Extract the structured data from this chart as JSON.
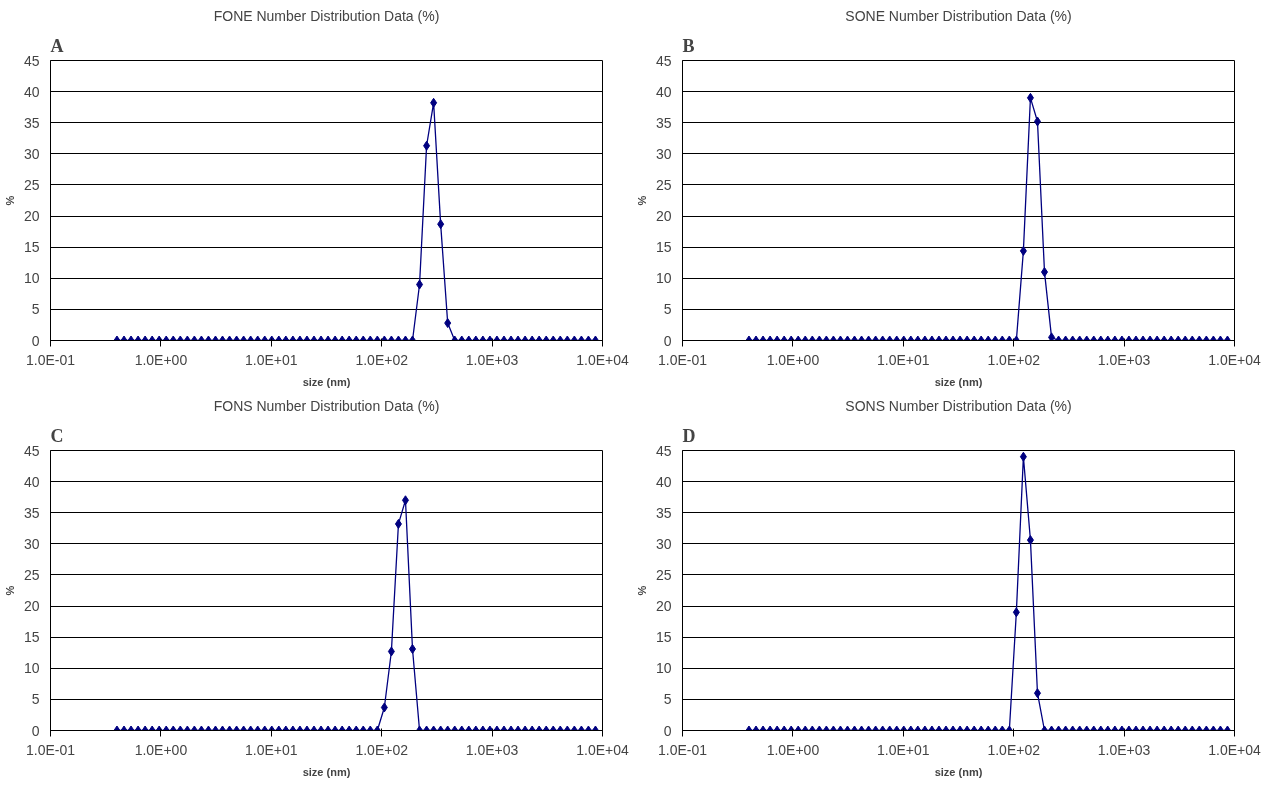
{
  "chart_data": [
    {
      "type": "line",
      "title": "FONE Number Distribution Data (%)",
      "xlabel": "size (nm)",
      "ylabel": "%",
      "annotations": [
        "A"
      ],
      "log": "x",
      "grid": "y",
      "marker": "diamond",
      "line_style": "solid",
      "xlim": [
        0.1,
        10000
      ],
      "xticks": [
        {
          "value": 0.1,
          "label": "1.0E-01"
        },
        {
          "value": 1,
          "label": "1.0E+00"
        },
        {
          "value": 10,
          "label": "1.0E+01"
        },
        {
          "value": 100,
          "label": "1.0E+02"
        },
        {
          "value": 1000,
          "label": "1.0E+03"
        },
        {
          "value": 10000,
          "label": "1.0E+04"
        }
      ],
      "ylim": [
        0,
        45
      ],
      "yticks": [
        0,
        5,
        10,
        15,
        20,
        25,
        30,
        35,
        40,
        45
      ],
      "x": [
        0.4,
        0.4632,
        0.5365,
        0.6213,
        0.7195,
        0.8332,
        0.965,
        1.117,
        1.294,
        1.499,
        1.736,
        2.01,
        2.328,
        2.696,
        3.122,
        3.615,
        4.187,
        4.849,
        5.615,
        6.503,
        7.531,
        8.721,
        10.1,
        11.7,
        13.54,
        15.69,
        18.17,
        21.04,
        24.36,
        28.21,
        32.67,
        37.84,
        43.82,
        50.75,
        58.77,
        68.06,
        78.82,
        91.28,
        105.7,
        122.4,
        141.8,
        164.2,
        190.1,
        220.2,
        255,
        295.3,
        342,
        396.1,
        458.7,
        531.2,
        615.1,
        712.4,
        825,
        955.4,
        1106,
        1281,
        1484,
        1718,
        1990,
        2305,
        2669,
        3091,
        3580,
        4145,
        4801,
        5560,
        6439,
        7456,
        8635
      ],
      "series": [
        {
          "color": "#000080",
          "values": [
            0,
            0,
            0,
            0,
            0,
            0,
            0,
            0,
            0,
            0,
            0,
            0,
            0,
            0,
            0,
            0,
            0,
            0,
            0,
            0,
            0,
            0,
            0,
            0,
            0,
            0,
            0,
            0,
            0,
            0,
            0,
            0,
            0,
            0,
            0,
            0,
            0,
            0,
            0,
            0,
            0,
            0,
            0,
            9,
            31.3,
            38.2,
            18.7,
            2.8,
            0,
            0,
            0,
            0,
            0,
            0,
            0,
            0,
            0,
            0,
            0,
            0,
            0,
            0,
            0,
            0,
            0,
            0,
            0,
            0,
            0
          ]
        }
      ]
    },
    {
      "type": "line",
      "title": "SONE Number Distribution Data (%)",
      "xlabel": "size (nm)",
      "ylabel": "%",
      "annotations": [
        "B"
      ],
      "log": "x",
      "grid": "y",
      "marker": "diamond",
      "line_style": "solid",
      "xlim": [
        0.1,
        10000
      ],
      "xticks": [
        {
          "value": 0.1,
          "label": "1.0E-01"
        },
        {
          "value": 1,
          "label": "1.0E+00"
        },
        {
          "value": 10,
          "label": "1.0E+01"
        },
        {
          "value": 100,
          "label": "1.0E+02"
        },
        {
          "value": 1000,
          "label": "1.0E+03"
        },
        {
          "value": 10000,
          "label": "1.0E+04"
        }
      ],
      "ylim": [
        0,
        45
      ],
      "yticks": [
        0,
        5,
        10,
        15,
        20,
        25,
        30,
        35,
        40,
        45
      ],
      "x": [
        0.4,
        0.4632,
        0.5365,
        0.6213,
        0.7195,
        0.8332,
        0.965,
        1.117,
        1.294,
        1.499,
        1.736,
        2.01,
        2.328,
        2.696,
        3.122,
        3.615,
        4.187,
        4.849,
        5.615,
        6.503,
        7.531,
        8.721,
        10.1,
        11.7,
        13.54,
        15.69,
        18.17,
        21.04,
        24.36,
        28.21,
        32.67,
        37.84,
        43.82,
        50.75,
        58.77,
        68.06,
        78.82,
        91.28,
        105.7,
        122.4,
        141.8,
        164.2,
        190.1,
        220.2,
        255,
        295.3,
        342,
        396.1,
        458.7,
        531.2,
        615.1,
        712.4,
        825,
        955.4,
        1106,
        1281,
        1484,
        1718,
        1990,
        2305,
        2669,
        3091,
        3580,
        4145,
        4801,
        5560,
        6439,
        7456,
        8635
      ],
      "series": [
        {
          "color": "#000080",
          "values": [
            0,
            0,
            0,
            0,
            0,
            0,
            0,
            0,
            0,
            0,
            0,
            0,
            0,
            0,
            0,
            0,
            0,
            0,
            0,
            0,
            0,
            0,
            0,
            0,
            0,
            0,
            0,
            0,
            0,
            0,
            0,
            0,
            0,
            0,
            0,
            0,
            0,
            0,
            0,
            14.4,
            39,
            35.2,
            11,
            0.5,
            0,
            0,
            0,
            0,
            0,
            0,
            0,
            0,
            0,
            0,
            0,
            0,
            0,
            0,
            0,
            0,
            0,
            0,
            0,
            0,
            0,
            0,
            0,
            0,
            0
          ]
        }
      ]
    },
    {
      "type": "line",
      "title": "FONS Number Distribution Data (%)",
      "xlabel": "size (nm)",
      "ylabel": "%",
      "annotations": [
        "C"
      ],
      "log": "x",
      "grid": "y",
      "marker": "diamond",
      "line_style": "solid",
      "xlim": [
        0.1,
        10000
      ],
      "xticks": [
        {
          "value": 0.1,
          "label": "1.0E-01"
        },
        {
          "value": 1,
          "label": "1.0E+00"
        },
        {
          "value": 10,
          "label": "1.0E+01"
        },
        {
          "value": 100,
          "label": "1.0E+02"
        },
        {
          "value": 1000,
          "label": "1.0E+03"
        },
        {
          "value": 10000,
          "label": "1.0E+04"
        }
      ],
      "ylim": [
        0,
        45
      ],
      "yticks": [
        0,
        5,
        10,
        15,
        20,
        25,
        30,
        35,
        40,
        45
      ],
      "x": [
        0.4,
        0.4632,
        0.5365,
        0.6213,
        0.7195,
        0.8332,
        0.965,
        1.117,
        1.294,
        1.499,
        1.736,
        2.01,
        2.328,
        2.696,
        3.122,
        3.615,
        4.187,
        4.849,
        5.615,
        6.503,
        7.531,
        8.721,
        10.1,
        11.7,
        13.54,
        15.69,
        18.17,
        21.04,
        24.36,
        28.21,
        32.67,
        37.84,
        43.82,
        50.75,
        58.77,
        68.06,
        78.82,
        91.28,
        105.7,
        122.4,
        141.8,
        164.2,
        190.1,
        220.2,
        255,
        295.3,
        342,
        396.1,
        458.7,
        531.2,
        615.1,
        712.4,
        825,
        955.4,
        1106,
        1281,
        1484,
        1718,
        1990,
        2305,
        2669,
        3091,
        3580,
        4145,
        4801,
        5560,
        6439,
        7456,
        8635
      ],
      "series": [
        {
          "color": "#000080",
          "values": [
            0,
            0,
            0,
            0,
            0,
            0,
            0,
            0,
            0,
            0,
            0,
            0,
            0,
            0,
            0,
            0,
            0,
            0,
            0,
            0,
            0,
            0,
            0,
            0,
            0,
            0,
            0,
            0,
            0,
            0,
            0,
            0,
            0,
            0,
            0,
            0,
            0,
            0,
            3.7,
            12.7,
            33.2,
            37,
            13.1,
            0,
            0,
            0,
            0,
            0,
            0,
            0,
            0,
            0,
            0,
            0,
            0,
            0,
            0,
            0,
            0,
            0,
            0,
            0,
            0,
            0,
            0,
            0,
            0,
            0,
            0
          ]
        }
      ]
    },
    {
      "type": "line",
      "title": "SONS Number Distribution Data (%)",
      "xlabel": "size (nm)",
      "ylabel": "%",
      "annotations": [
        "D"
      ],
      "log": "x",
      "grid": "y",
      "marker": "diamond",
      "line_style": "solid",
      "xlim": [
        0.1,
        10000
      ],
      "xticks": [
        {
          "value": 0.1,
          "label": "1.0E-01"
        },
        {
          "value": 1,
          "label": "1.0E+00"
        },
        {
          "value": 10,
          "label": "1.0E+01"
        },
        {
          "value": 100,
          "label": "1.0E+02"
        },
        {
          "value": 1000,
          "label": "1.0E+03"
        },
        {
          "value": 10000,
          "label": "1.0E+04"
        }
      ],
      "ylim": [
        0,
        45
      ],
      "yticks": [
        0,
        5,
        10,
        15,
        20,
        25,
        30,
        35,
        40,
        45
      ],
      "x": [
        0.4,
        0.4632,
        0.5365,
        0.6213,
        0.7195,
        0.8332,
        0.965,
        1.117,
        1.294,
        1.499,
        1.736,
        2.01,
        2.328,
        2.696,
        3.122,
        3.615,
        4.187,
        4.849,
        5.615,
        6.503,
        7.531,
        8.721,
        10.1,
        11.7,
        13.54,
        15.69,
        18.17,
        21.04,
        24.36,
        28.21,
        32.67,
        37.84,
        43.82,
        50.75,
        58.77,
        68.06,
        78.82,
        91.28,
        105.7,
        122.4,
        141.8,
        164.2,
        190.1,
        220.2,
        255,
        295.3,
        342,
        396.1,
        458.7,
        531.2,
        615.1,
        712.4,
        825,
        955.4,
        1106,
        1281,
        1484,
        1718,
        1990,
        2305,
        2669,
        3091,
        3580,
        4145,
        4801,
        5560,
        6439,
        7456,
        8635
      ],
      "series": [
        {
          "color": "#000080",
          "values": [
            0,
            0,
            0,
            0,
            0,
            0,
            0,
            0,
            0,
            0,
            0,
            0,
            0,
            0,
            0,
            0,
            0,
            0,
            0,
            0,
            0,
            0,
            0,
            0,
            0,
            0,
            0,
            0,
            0,
            0,
            0,
            0,
            0,
            0,
            0,
            0,
            0,
            0,
            19,
            44,
            30.6,
            6,
            0,
            0,
            0,
            0,
            0,
            0,
            0,
            0,
            0,
            0,
            0,
            0,
            0,
            0,
            0,
            0,
            0,
            0,
            0,
            0,
            0,
            0,
            0,
            0,
            0,
            0,
            0
          ]
        }
      ]
    }
  ]
}
